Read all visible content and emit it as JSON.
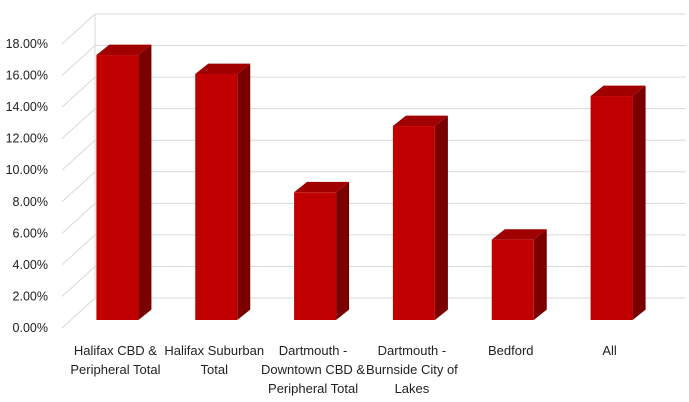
{
  "chart_data": {
    "type": "bar",
    "style": "3d-column",
    "title": "",
    "xlabel": "",
    "ylabel": "",
    "ylim": [
      0,
      18
    ],
    "y_tick_step": 2,
    "y_tick_labels": [
      "0.00%",
      "2.00%",
      "4.00%",
      "6.00%",
      "8.00%",
      "10.00%",
      "12.00%",
      "14.00%",
      "16.00%",
      "18.00%"
    ],
    "grid": true,
    "legend": "none",
    "categories": [
      [
        "Halifax CBD &",
        "Peripheral Total"
      ],
      [
        "Halifax Suburban",
        "Total"
      ],
      [
        "Dartmouth -",
        "Downtown CBD &",
        "Peripheral Total"
      ],
      [
        "Dartmouth -",
        "Burnside City of",
        "Lakes"
      ],
      [
        "Bedford"
      ],
      [
        "All"
      ]
    ],
    "values": [
      17.3,
      16.1,
      8.6,
      12.8,
      5.6,
      14.7
    ],
    "colors": {
      "front": "#c00000",
      "top": "#a00000",
      "side": "#7a0000",
      "grid": "#d9d9d9"
    }
  }
}
